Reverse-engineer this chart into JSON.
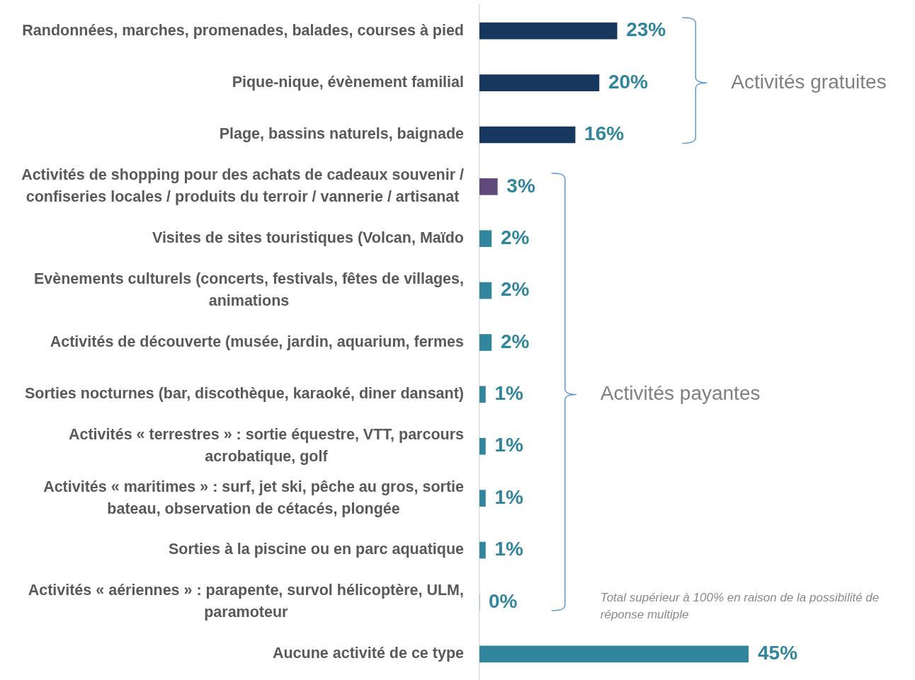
{
  "chart_data": {
    "type": "bar",
    "orientation": "horizontal",
    "categories": [
      "Randonnées, marches, promenades, balades, courses à pied",
      "Pique-nique, évènement familial",
      "Plage, bassins naturels, baignade",
      "Activités de shopping pour des achats de cadeaux souvenir / confiseries locales / produits du terroir / vannerie / artisanat",
      "Visites de sites touristiques (Volcan, Maïdo",
      "Evènements culturels (concerts, festivals, fêtes de villages, animations",
      "Activités de découverte (musée, jardin, aquarium, fermes",
      "Sorties nocturnes (bar, discothèque, karaoké, diner dansant)",
      "Activités « terrestres » : sortie équestre, VTT, parcours acrobatique, golf",
      "Activités « maritimes » : surf, jet ski, pêche au gros, sortie bateau, observation de cétacés, plongée",
      "Sorties à la piscine ou en parc aquatique",
      "Activités « aériennes » : parapente, survol hélicoptère, ULM, paramoteur",
      "Aucune activité de ce type"
    ],
    "values": [
      23,
      20,
      16,
      3,
      2,
      2,
      2,
      1,
      1,
      1,
      1,
      0,
      45
    ],
    "colors": [
      "#17375e",
      "#17375e",
      "#17375e",
      "#604a7b",
      "#31859c",
      "#31859c",
      "#31859c",
      "#31859c",
      "#31859c",
      "#31859c",
      "#31859c",
      "#31859c",
      "#31859c"
    ],
    "value_labels": [
      "23%",
      "20%",
      "16%",
      "3%",
      "2%",
      "2%",
      "2%",
      "1%",
      "1%",
      "1%",
      "1%",
      "0%",
      "45%"
    ],
    "tick_labels": "y",
    "annotations": [
      "Activités gratuites",
      "Activités payantes",
      "Total supérieur à 100% en raison de la possibilité de réponse multiple"
    ]
  }
}
